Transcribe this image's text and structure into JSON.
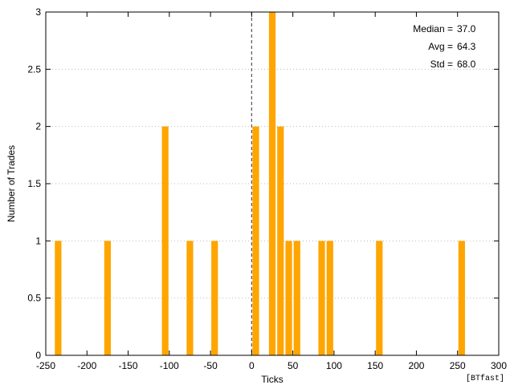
{
  "chart_data": {
    "type": "bar",
    "xlabel": "Ticks",
    "ylabel": "Number of Trades",
    "xlim": [
      -250,
      300
    ],
    "ylim": [
      0,
      3
    ],
    "x_ticks": [
      -250,
      -200,
      -150,
      -100,
      -50,
      0,
      50,
      100,
      150,
      200,
      250,
      300
    ],
    "y_ticks": [
      0,
      0.5,
      1,
      1.5,
      2,
      2.5,
      3
    ],
    "bin_width": 10,
    "bins": [
      {
        "x": -235,
        "count": 1
      },
      {
        "x": -175,
        "count": 1
      },
      {
        "x": -105,
        "count": 2
      },
      {
        "x": -75,
        "count": 1
      },
      {
        "x": -45,
        "count": 1
      },
      {
        "x": 5,
        "count": 2
      },
      {
        "x": 25,
        "count": 3
      },
      {
        "x": 35,
        "count": 2
      },
      {
        "x": 45,
        "count": 1
      },
      {
        "x": 55,
        "count": 1
      },
      {
        "x": 85,
        "count": 1
      },
      {
        "x": 95,
        "count": 1
      },
      {
        "x": 155,
        "count": 1
      },
      {
        "x": 255,
        "count": 1
      }
    ],
    "zero_line_x": 0,
    "bar_color": "#ffa500",
    "grid": true,
    "stats": [
      {
        "label": "Median =",
        "value": "37.0"
      },
      {
        "label": "Avg =",
        "value": "64.3"
      },
      {
        "label": "Std =",
        "value": "68.0"
      }
    ],
    "watermark": "[BTfast]"
  }
}
